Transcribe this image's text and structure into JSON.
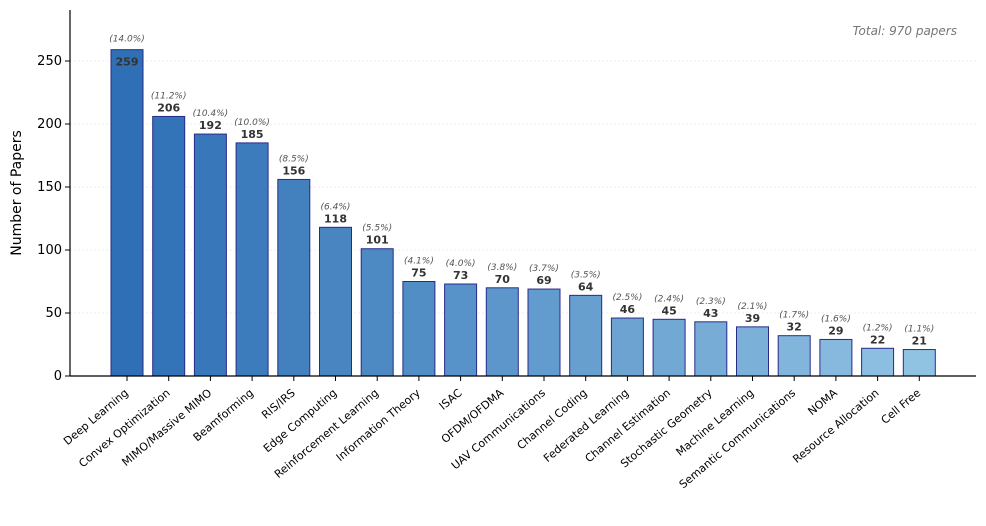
{
  "chart_data": {
    "type": "bar",
    "ylabel": "Number of Papers",
    "xlabel": "",
    "ylim": [
      0,
      290
    ],
    "yticks": [
      0,
      50,
      100,
      150,
      200,
      250
    ],
    "grid": "horizontal, faint",
    "note": "Total: 970 papers",
    "categories": [
      "Deep Learning",
      "Convex Optimization",
      "MIMO/Massive MIMO",
      "Beamforming",
      "RIS/IRS",
      "Edge Computing",
      "Reinforcement Learning",
      "Information Theory",
      "ISAC",
      "OFDM/OFDMA",
      "UAV Communications",
      "Channel Coding",
      "Federated Learning",
      "Channel Estimation",
      "Stochastic Geometry",
      "Machine Learning",
      "Semantic Communications",
      "NOMA",
      "Resource Allocation",
      "Cell Free"
    ],
    "values": [
      259,
      206,
      192,
      185,
      156,
      118,
      101,
      75,
      73,
      70,
      69,
      64,
      46,
      45,
      43,
      39,
      32,
      29,
      22,
      21
    ],
    "value_labels": [
      "259",
      "206",
      "192",
      "185",
      "156",
      "118",
      "101",
      "75",
      "73",
      "70",
      "69",
      "64",
      "46",
      "45",
      "43",
      "39",
      "32",
      "29",
      "22",
      "21"
    ],
    "percent_labels": [
      "(14.0%)",
      "(11.2%)",
      "(10.4%)",
      "(10.0%)",
      "(8.5%)",
      "(6.4%)",
      "(5.5%)",
      "(4.1%)",
      "(4.0%)",
      "(3.8%)",
      "(3.7%)",
      "(3.5%)",
      "(2.5%)",
      "(2.4%)",
      "(2.3%)",
      "(2.1%)",
      "(1.7%)",
      "(1.6%)",
      "(1.2%)",
      "(1.1%)"
    ],
    "colors": {
      "bar_gradient_start": "#2e6fb5",
      "bar_gradient_end": "#90c2e2",
      "bar_edge": "#2a2a8a",
      "axis": "#000000",
      "grid": "#eeeeee"
    }
  }
}
